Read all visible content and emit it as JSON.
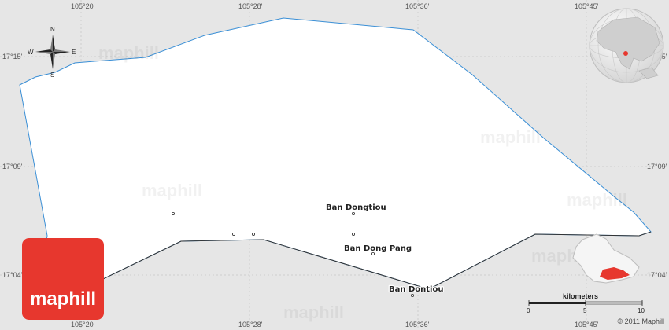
{
  "map": {
    "grid_labels": {
      "longitudes": [
        "105°20'",
        "105°28'",
        "105°36'",
        "105°45'"
      ],
      "latitudes": [
        "17°15'",
        "17°09'",
        "17°04'"
      ]
    },
    "places": [
      "Ban Dongtiou",
      "Ban Dong Pang",
      "Ban Dontiou"
    ],
    "compass": {
      "n": "N",
      "s": "S",
      "e": "E",
      "w": "W"
    },
    "scale": {
      "title": "kilometers",
      "ticks": [
        "0",
        "5",
        "10"
      ]
    },
    "watermark": "maphill",
    "logo_text": "maphill",
    "copyright": "© 2011 Maphill",
    "colors": {
      "background": "#e6e6e6",
      "region_fill": "#ffffff",
      "boundary": "#3a8fd6",
      "country_border": "#333333",
      "highlight": "#e7372e"
    }
  }
}
